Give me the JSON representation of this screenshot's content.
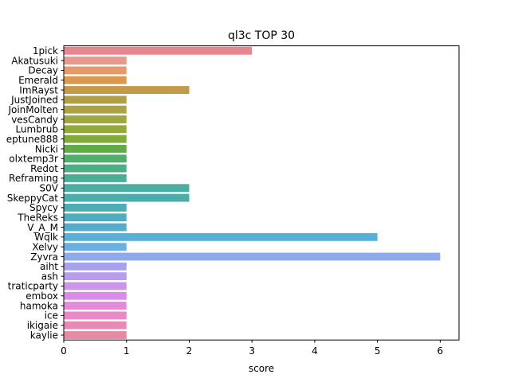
{
  "chart_data": {
    "type": "bar",
    "orientation": "horizontal",
    "title": "ql3c TOP 30",
    "xlabel": "score",
    "ylabel": "",
    "xlim": [
      0,
      6.3
    ],
    "xticks": [
      0,
      1,
      2,
      3,
      4,
      5,
      6
    ],
    "grid": false,
    "legend": "none",
    "categories": [
      "1pick",
      "Akatusuki",
      "Decay",
      "Emerald",
      "ImRayst",
      "JustJoined",
      "JoinMolten",
      "vesCandy",
      "Lumbrub",
      "eptune888",
      "Nicki",
      "olxtemp3r",
      "Redot",
      "Reframing",
      "S0V",
      "SkeppyCat",
      "Spycy",
      "TheReks",
      "V_A_M",
      "Wqlk",
      "Xelvy",
      "Zyvra",
      "aiht",
      "ash",
      "traticparty",
      "embox",
      "hamoka",
      "ice",
      "ikigaie",
      "kaylie"
    ],
    "values": [
      3,
      1,
      1,
      1,
      2,
      1,
      1,
      1,
      1,
      1,
      1,
      1,
      1,
      1,
      2,
      2,
      1,
      1,
      1,
      5,
      1,
      6,
      1,
      1,
      1,
      1,
      1,
      1,
      1,
      1
    ],
    "colors": [
      "#e8868f",
      "#e8998e",
      "#e59a6c",
      "#d99a4f",
      "#c39a47",
      "#b39e46",
      "#a9a441",
      "#9ea63f",
      "#93a83d",
      "#83ab3c",
      "#5ead44",
      "#4fae6b",
      "#4baf84",
      "#4aae94",
      "#4aaea0",
      "#49ada9",
      "#4cadb5",
      "#4eaec1",
      "#51aecc",
      "#57b0d8",
      "#6ab0e4",
      "#8fa9ea",
      "#a6a2ed",
      "#b79dec",
      "#cb95ea",
      "#db8ce8",
      "#e489db",
      "#e889c8",
      "#e88ab5",
      "#e88aa4"
    ]
  }
}
